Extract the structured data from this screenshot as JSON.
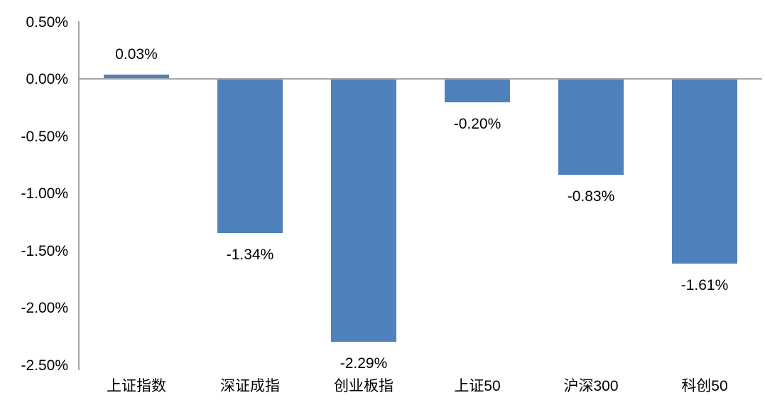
{
  "chart_data": {
    "type": "bar",
    "categories": [
      "上证指数",
      "深证成指",
      "创业板指",
      "上证50",
      "沪深300",
      "科创50"
    ],
    "values": [
      0.03,
      -1.34,
      -2.29,
      -0.2,
      -0.83,
      -1.61
    ],
    "value_labels": [
      "0.03%",
      "-1.34%",
      "-2.29%",
      "-0.20%",
      "-0.83%",
      "-1.61%"
    ],
    "y_ticks": [
      {
        "label": "0.50%",
        "value": 0.5
      },
      {
        "label": "0.00%",
        "value": 0.0
      },
      {
        "label": "-0.50%",
        "value": -0.5
      },
      {
        "label": "-1.00%",
        "value": -1.0
      },
      {
        "label": "-1.50%",
        "value": -1.5
      },
      {
        "label": "-2.00%",
        "value": -2.0
      },
      {
        "label": "-2.50%",
        "value": -2.5
      }
    ],
    "ylim": [
      -2.5,
      0.5
    ],
    "unit": "%",
    "grid": false,
    "legend": false,
    "bar_color": "#4F81BD",
    "axis_color": "#A6A6A6",
    "text_color": "#000000",
    "background_color": "#FFFFFF"
  }
}
